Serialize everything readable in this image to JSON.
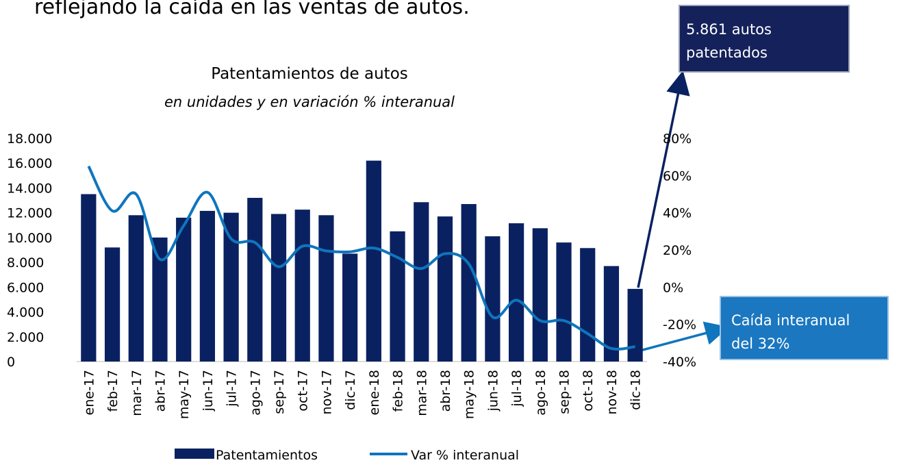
{
  "slide_heading": "reflejando la caída en las ventas de autos.",
  "chart_data": {
    "type": "bar_line",
    "title": "Patentamientos de autos",
    "subtitle": "en unidades y en variación % interanual",
    "categories": [
      "ene-17",
      "feb-17",
      "mar-17",
      "abr-17",
      "may-17",
      "jun-17",
      "jul-17",
      "ago-17",
      "sep-17",
      "oct-17",
      "nov-17",
      "dic-17",
      "ene-18",
      "feb-18",
      "mar-18",
      "abr-18",
      "may-18",
      "jun-18",
      "jul-18",
      "ago-18",
      "sep-18",
      "oct-18",
      "nov-18",
      "dic-18"
    ],
    "series": [
      {
        "name": "Patentamientos",
        "type": "bar",
        "color": "#0a2161",
        "values": [
          13500,
          9200,
          11800,
          10000,
          11600,
          12150,
          12000,
          13200,
          11900,
          12250,
          11800,
          8700,
          16200,
          10500,
          12850,
          11700,
          12700,
          10100,
          11150,
          10750,
          9600,
          9150,
          7700,
          5861
        ]
      },
      {
        "name": "Var % interanual",
        "type": "line",
        "color": "#0f75bd",
        "axis": "y2",
        "values": [
          65,
          41,
          50,
          15,
          33,
          51,
          26,
          24,
          11,
          22,
          19.5,
          19,
          21,
          16,
          10,
          18,
          12.5,
          -16,
          -7,
          -18,
          -18,
          -25,
          -33,
          -32
        ]
      }
    ],
    "ylim": [
      0,
      18000
    ],
    "yticks": [
      {
        "value": 0,
        "label": "0"
      },
      {
        "value": 2000,
        "label": "2.000"
      },
      {
        "value": 4000,
        "label": "4.000"
      },
      {
        "value": 6000,
        "label": "6.000"
      },
      {
        "value": 8000,
        "label": "8.000"
      },
      {
        "value": 10000,
        "label": "10.000"
      },
      {
        "value": 12000,
        "label": "12.000"
      },
      {
        "value": 14000,
        "label": "14.000"
      },
      {
        "value": 16000,
        "label": "16.000"
      },
      {
        "value": 18000,
        "label": "18.000"
      }
    ],
    "y2lim": [
      -40,
      80
    ],
    "y2ticks": [
      {
        "value": -40,
        "label": "-40%"
      },
      {
        "value": -20,
        "label": "-20%"
      },
      {
        "value": 0,
        "label": "0%"
      },
      {
        "value": 20,
        "label": "20%"
      },
      {
        "value": 40,
        "label": "40%"
      },
      {
        "value": 60,
        "label": "60%"
      },
      {
        "value": 80,
        "label": "80%"
      }
    ],
    "annotations": [
      {
        "lines": [
          "5.861 autos",
          "patentados"
        ]
      },
      {
        "lines": [
          "Caída interanual",
          "del 32%"
        ]
      }
    ]
  }
}
